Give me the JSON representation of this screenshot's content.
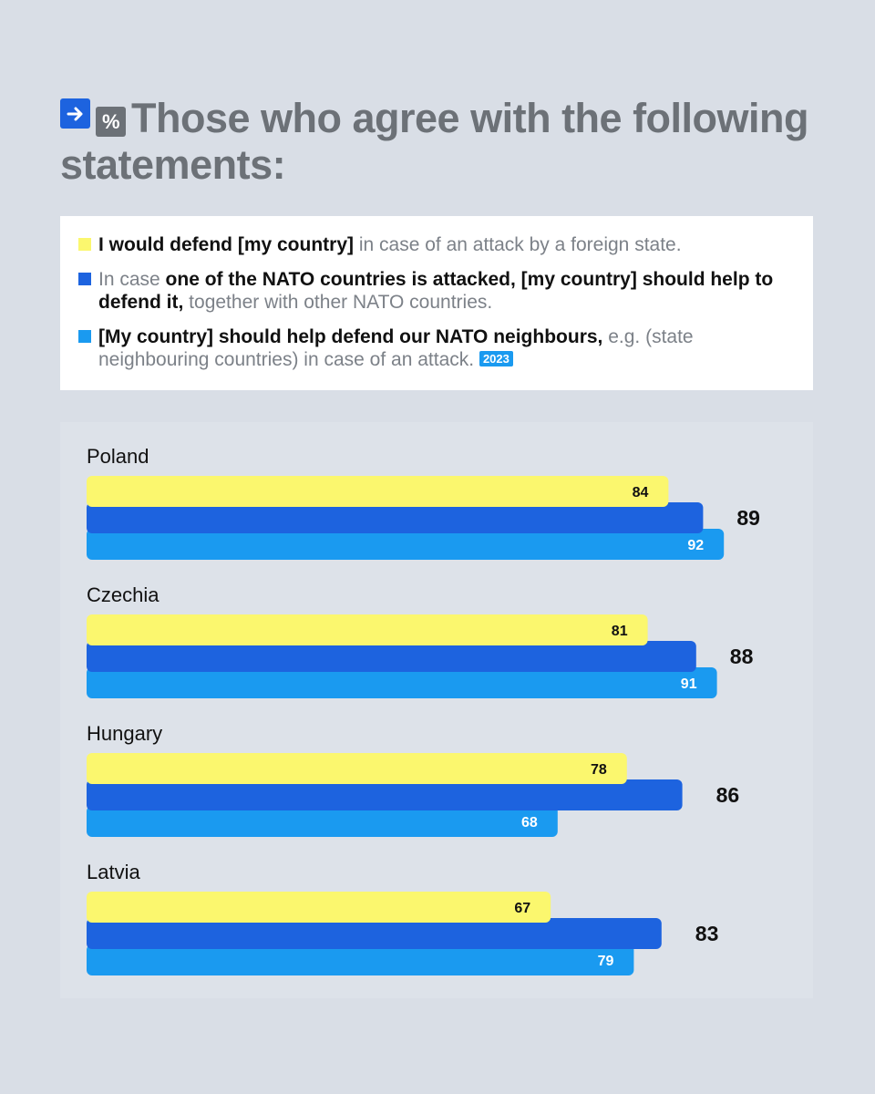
{
  "header": {
    "title": "Those who agree with the following statements:",
    "arrow_icon": "arrow-right-icon",
    "percent_icon": "percent-icon",
    "percent_symbol": "%"
  },
  "legend": {
    "items": [
      {
        "color": "#fbf76e",
        "bold": "I would defend [my country]",
        "rest": " in case of an attack by a foreign state."
      },
      {
        "color": "#1d63df",
        "pre": "In case ",
        "bold": "one of the NATO countries is attacked, [my country] should help to defend it,",
        "rest": " together with other NATO countries."
      },
      {
        "color": "#1a9af0",
        "bold": "[My country] should help defend our NATO neighbours,",
        "rest": " e.g. (state neighbouring countries) in case of an attack.",
        "badge": "2023"
      }
    ]
  },
  "colors": {
    "yellow": "#fbf76e",
    "blue": "#1d63df",
    "light_blue": "#1a9af0"
  },
  "chart_data": {
    "type": "bar",
    "orientation": "horizontal",
    "title": "Those who agree with the following statements:",
    "categories": [
      "Poland",
      "Czechia",
      "Hungary",
      "Latvia"
    ],
    "series": [
      {
        "name": "I would defend [my country] in case of an attack by a foreign state.",
        "color": "#fbf76e",
        "values": [
          84,
          81,
          78,
          67
        ]
      },
      {
        "name": "In case one of the NATO countries is attacked, [my country] should help to defend it, together with other NATO countries.",
        "color": "#1d63df",
        "values": [
          89,
          88,
          86,
          83
        ]
      },
      {
        "name": "[My country] should help defend our NATO neighbours, e.g. (state neighbouring countries) in case of an attack. 2023",
        "color": "#1a9af0",
        "values": [
          92,
          91,
          68,
          79
        ]
      }
    ],
    "unit": "%",
    "xlim": [
      0,
      100
    ]
  }
}
